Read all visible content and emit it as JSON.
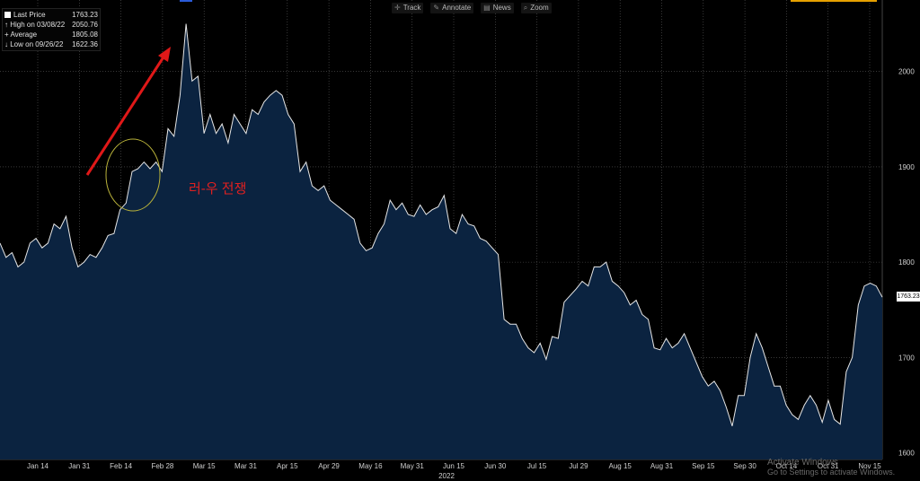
{
  "toolbar": {
    "track": "Track",
    "annotate": "Annotate",
    "news": "News",
    "zoom": "Zoom",
    "track_icon": "crosshair-icon",
    "annotate_icon": "pencil-icon",
    "news_icon": "news-icon",
    "zoom_icon": "magnifier-icon"
  },
  "legend": {
    "rows": [
      {
        "label": "Last Price",
        "value": "1763.23"
      },
      {
        "label": "High on 03/08/22",
        "value": "2050.76"
      },
      {
        "label": "Average",
        "value": "1805.08"
      },
      {
        "label": "Low on 09/26/22",
        "value": "1622.36"
      }
    ]
  },
  "annotation": "러-우 전쟁",
  "last_price_tag": "1763.23",
  "watermark": {
    "line1": "Activate Windows",
    "line2": "Go to Settings to activate Windows."
  },
  "colors": {
    "line": "#e6e6e6",
    "fill": "#0b2340",
    "grid": "#5a5a5a",
    "arrow": "#e01818",
    "circle": "#b9b23a",
    "accent": "#e6a000"
  },
  "chart_data": {
    "type": "area",
    "ylim": [
      1593,
      2075
    ],
    "yticks": [
      1600,
      1700,
      1800,
      1900,
      2000
    ],
    "xticks": [
      "Jan 14",
      "Jan 31",
      "Feb 14",
      "Feb 28",
      "Mar 15",
      "Mar 31",
      "Apr 15",
      "Apr 29",
      "May 16",
      "May 31",
      "Jun 15",
      "Jun 30",
      "Jul 15",
      "Jul 29",
      "Aug 15",
      "Aug 31",
      "Sep 15",
      "Sep 30",
      "Oct 14",
      "Oct 31",
      "Nov 15"
    ],
    "x_year_label": "2022",
    "series": [
      {
        "values": [
          1820,
          1805,
          1810,
          1795,
          1800,
          1820,
          1825,
          1815,
          1820,
          1840,
          1835,
          1848,
          1815,
          1795,
          1800,
          1808,
          1805,
          1815,
          1828,
          1830,
          1855,
          1862,
          1895,
          1898,
          1905,
          1898,
          1905,
          1895,
          1940,
          1932,
          1975,
          2050,
          1990,
          1995,
          1935,
          1955,
          1935,
          1945,
          1925,
          1955,
          1945,
          1935,
          1960,
          1955,
          1968,
          1975,
          1980,
          1975,
          1955,
          1945,
          1895,
          1905,
          1880,
          1875,
          1880,
          1865,
          1860,
          1855,
          1850,
          1845,
          1820,
          1812,
          1815,
          1830,
          1840,
          1865,
          1855,
          1862,
          1850,
          1848,
          1860,
          1850,
          1855,
          1858,
          1870,
          1835,
          1830,
          1850,
          1840,
          1838,
          1825,
          1822,
          1815,
          1808,
          1740,
          1735,
          1735,
          1720,
          1710,
          1705,
          1715,
          1698,
          1722,
          1720,
          1758,
          1765,
          1772,
          1780,
          1775,
          1795,
          1795,
          1800,
          1780,
          1775,
          1768,
          1755,
          1760,
          1745,
          1740,
          1710,
          1708,
          1720,
          1710,
          1715,
          1725,
          1710,
          1695,
          1680,
          1670,
          1675,
          1665,
          1648,
          1628,
          1660,
          1660,
          1700,
          1725,
          1710,
          1690,
          1670,
          1670,
          1650,
          1640,
          1635,
          1650,
          1660,
          1650,
          1632,
          1655,
          1635,
          1630,
          1685,
          1700,
          1755,
          1775,
          1778,
          1775,
          1763.23
        ]
      }
    ]
  }
}
